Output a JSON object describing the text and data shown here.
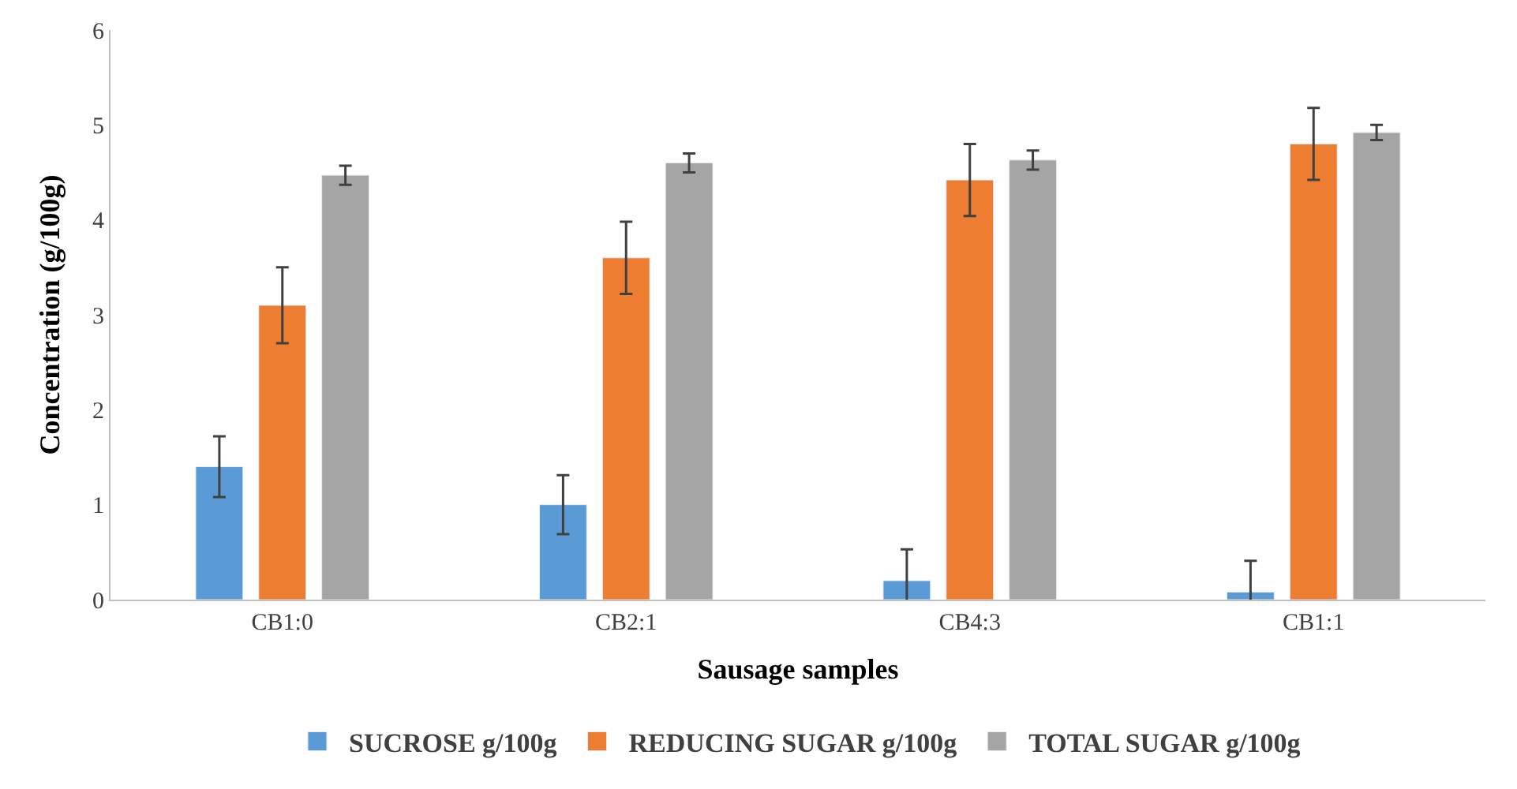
{
  "chart_data": {
    "type": "bar",
    "xlabel": "Sausage samples",
    "ylabel": "Concentration (g/100g)",
    "categories": [
      "CB1:0",
      "CB2:1",
      "CB4:3",
      "CB1:1"
    ],
    "series": [
      {
        "name": "SUCROSE g/100g",
        "color": "#5b9bd5",
        "values": [
          1.4,
          1.0,
          0.2,
          0.08
        ],
        "errors": [
          0.32,
          0.31,
          0.33,
          0.33
        ]
      },
      {
        "name": "REDUCING SUGAR g/100g",
        "color": "#ed7d31",
        "values": [
          3.1,
          3.6,
          4.42,
          4.8
        ],
        "errors": [
          0.4,
          0.38,
          0.38,
          0.38
        ]
      },
      {
        "name": "TOTAL SUGAR g/100g",
        "color": "#a5a5a5",
        "values": [
          4.47,
          4.6,
          4.63,
          4.92
        ],
        "errors": [
          0.1,
          0.1,
          0.1,
          0.08
        ]
      }
    ],
    "ylim": [
      0,
      6
    ],
    "yticks": [
      0,
      1,
      2,
      3,
      4,
      5,
      6
    ],
    "legend": "bottom"
  }
}
